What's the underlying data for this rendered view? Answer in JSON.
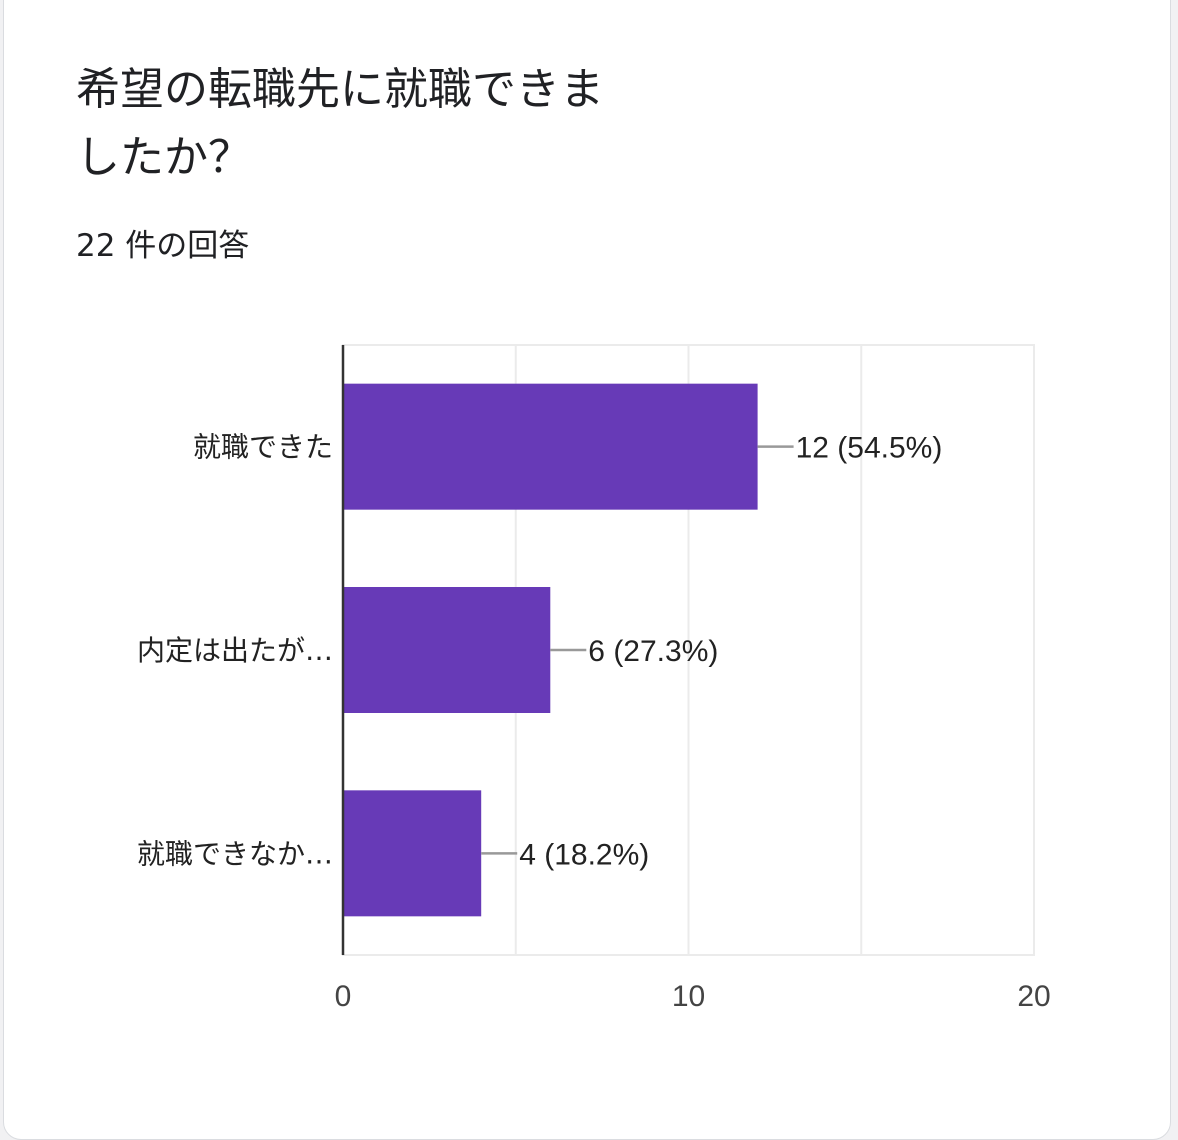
{
  "question": {
    "title": "希望の転職先に就職できましたか？",
    "response_count": "22 件の回答"
  },
  "chart_data": {
    "type": "bar",
    "orientation": "horizontal",
    "categories": [
      "就職できた",
      "内定は出たが…",
      "就職できなか…"
    ],
    "values": [
      12,
      6,
      4
    ],
    "data_labels": [
      "12 (54.5%)",
      "6 (27.3%)",
      "4 (18.2%)"
    ],
    "xlim": [
      0,
      20
    ],
    "x_ticks": [
      0,
      10,
      20
    ],
    "grid": true,
    "bar_color": "#673ab7"
  }
}
